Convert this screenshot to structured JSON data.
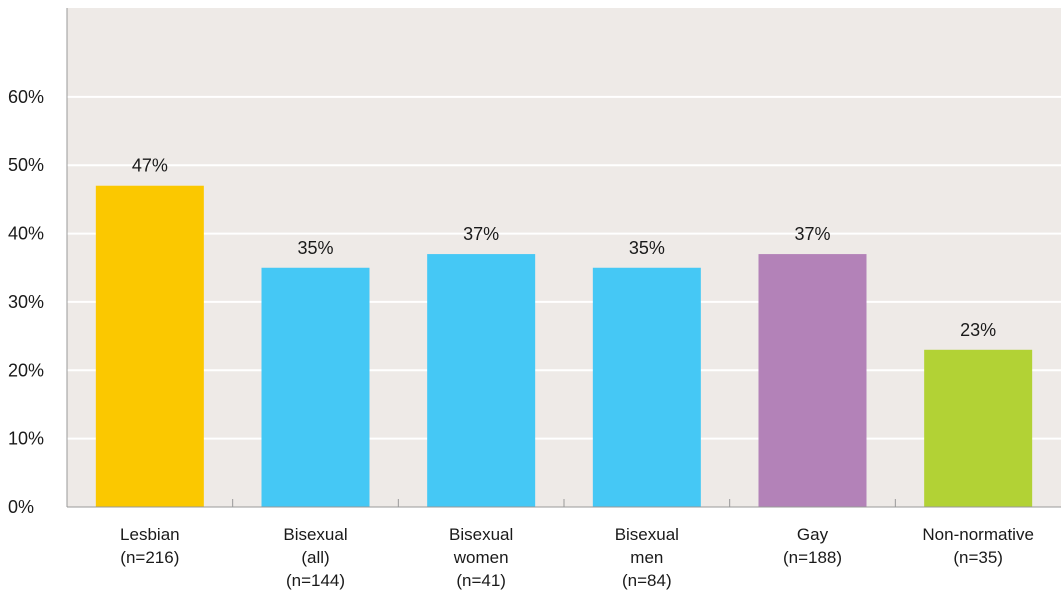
{
  "chart_data": {
    "type": "bar",
    "categories": [
      [
        "Lesbian",
        "(n=216)"
      ],
      [
        "Bisexual",
        "(all)",
        "(n=144)"
      ],
      [
        "Bisexual",
        "women",
        "(n=41)"
      ],
      [
        "Bisexual",
        "men",
        "(n=84)"
      ],
      [
        "Gay",
        "(n=188)"
      ],
      [
        "Non-normative",
        "(n=35)"
      ]
    ],
    "values": [
      47,
      35,
      37,
      35,
      37,
      23
    ],
    "data_labels": [
      "47%",
      "35%",
      "37%",
      "35%",
      "37%",
      "23%"
    ],
    "colors": [
      "#fbc800",
      "#45c8f5",
      "#45c8f5",
      "#45c8f5",
      "#b382b8",
      "#b2d235"
    ],
    "ylim": [
      0,
      73
    ],
    "yticks": [
      0,
      10,
      20,
      30,
      40,
      50,
      60
    ],
    "ytick_labels": [
      "0%",
      "10%",
      "20%",
      "30%",
      "40%",
      "50%",
      "60%"
    ],
    "title": "",
    "xlabel": "",
    "ylabel": "",
    "grid": true,
    "plot_background": "#eeeae7",
    "gridline_color": "#ffffff",
    "axis_color": "#999999"
  }
}
